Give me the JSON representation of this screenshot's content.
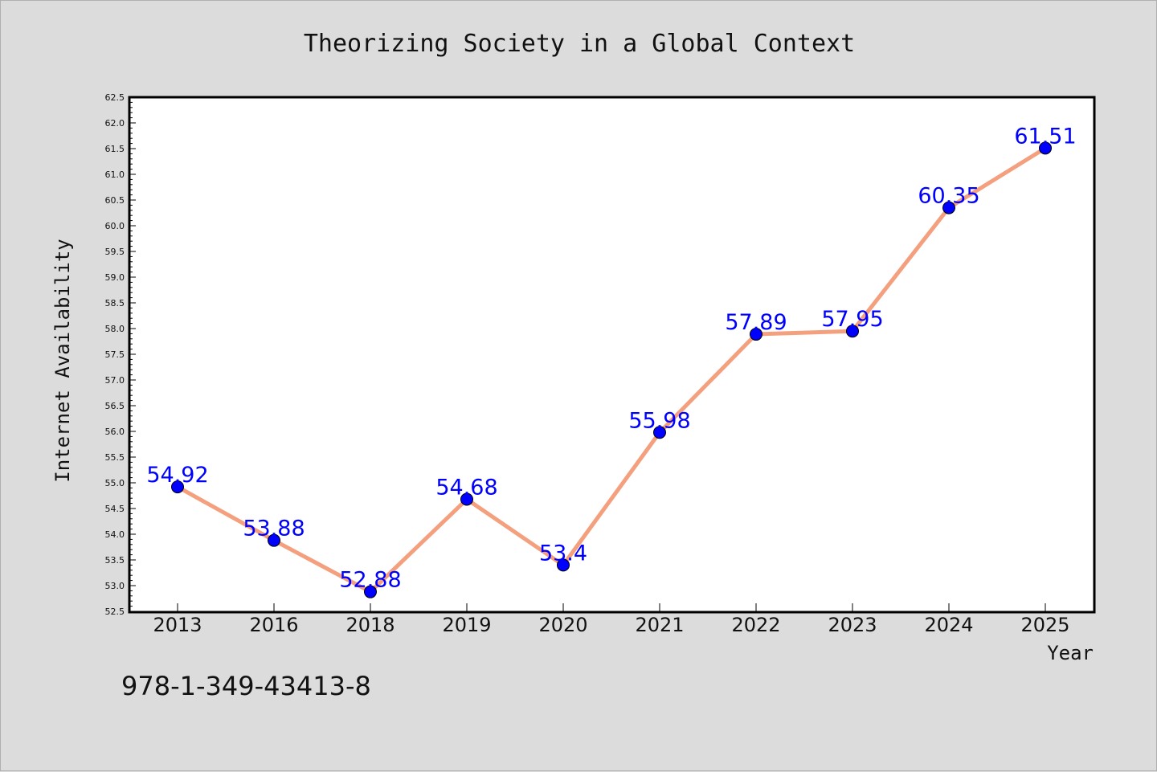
{
  "chart_data": {
    "type": "line",
    "title": "Theorizing Society in a Global Context",
    "xlabel": "Year",
    "ylabel": "Internet Availability",
    "categories": [
      "2013",
      "2016",
      "2018",
      "2019",
      "2020",
      "2021",
      "2022",
      "2023",
      "2024",
      "2025"
    ],
    "series": [
      {
        "values": [
          54.92,
          53.88,
          52.88,
          54.68,
          53.4,
          55.98,
          57.89,
          57.95,
          60.35,
          61.51
        ]
      }
    ],
    "data_labels": [
      "54.92",
      "53.88",
      "52.88",
      "54.68",
      "53.4",
      "55.98",
      "57.89",
      "57.95",
      "60.35",
      "61.51"
    ],
    "ylim": [
      52.5,
      62.5
    ],
    "yticks": [
      "52.5",
      "53.0",
      "53.5",
      "54.0",
      "54.5",
      "55.0",
      "55.5",
      "56.0",
      "56.5",
      "57.0",
      "57.5",
      "58.0",
      "58.5",
      "59.0",
      "59.5",
      "60.0",
      "60.5",
      "61.0",
      "61.5",
      "62.0",
      "62.5"
    ],
    "grid": false,
    "line_color": "#f4a07e",
    "marker_color": "#0000ff",
    "label_color": "#0000ff",
    "background": "#dcdcdc",
    "plot_background": "#ffffff"
  },
  "footer": {
    "isbn": "978-1-349-43413-8"
  }
}
